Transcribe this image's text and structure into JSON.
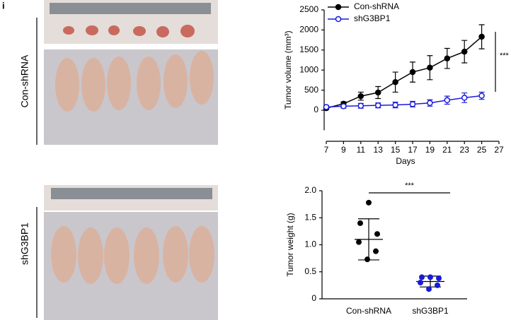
{
  "panel_label": "i",
  "photo_labels": [
    "Con-shRNA",
    "shG3BP1"
  ],
  "chart_data": [
    {
      "type": "line",
      "xlabel": "Days",
      "ylabel": "Tumor volume (mm³)",
      "annotation": "***",
      "x": [
        7,
        9,
        11,
        13,
        15,
        17,
        19,
        21,
        23,
        25
      ],
      "series": [
        {
          "name": "Con-shRNA",
          "color": "#000000",
          "marker": "filled",
          "values": [
            50,
            160,
            350,
            440,
            700,
            950,
            1060,
            1290,
            1460,
            1830
          ],
          "errors": [
            30,
            50,
            100,
            150,
            250,
            250,
            300,
            250,
            280,
            300
          ]
        },
        {
          "name": "shG3BP1",
          "color": "#1a1adc",
          "marker": "open",
          "values": [
            80,
            100,
            110,
            120,
            130,
            150,
            180,
            250,
            310,
            360
          ],
          "errors": [
            40,
            50,
            60,
            60,
            70,
            70,
            80,
            100,
            120,
            90
          ]
        }
      ],
      "xlim": [
        7,
        27
      ],
      "xticks": [
        7,
        9,
        11,
        13,
        15,
        17,
        19,
        21,
        23,
        25,
        27
      ],
      "ylim": [
        -500,
        2500
      ],
      "yticks": [
        0,
        500,
        1000,
        1500,
        2000,
        2500
      ],
      "legend": "top-left"
    },
    {
      "type": "strip",
      "ylabel": "Tumor weight (g)",
      "annotation": "***",
      "categories": [
        "Con-shRNA",
        "shG3BP1"
      ],
      "groups": [
        {
          "color": "#000000",
          "values": [
            1.78,
            1.4,
            1.2,
            1.05,
            0.88,
            0.73
          ],
          "mean": 1.1,
          "sd": 0.38
        },
        {
          "color": "#1a1adc",
          "values": [
            0.4,
            0.4,
            0.38,
            0.3,
            0.25,
            0.18
          ],
          "mean": 0.32,
          "sd": 0.1
        }
      ],
      "ylim": [
        0,
        2
      ],
      "yticks": [
        0,
        0.5,
        {
          "value": 1,
          "label": "1.0"
        },
        1.5,
        {
          "value": 2,
          "label": "2.0"
        }
      ]
    }
  ]
}
